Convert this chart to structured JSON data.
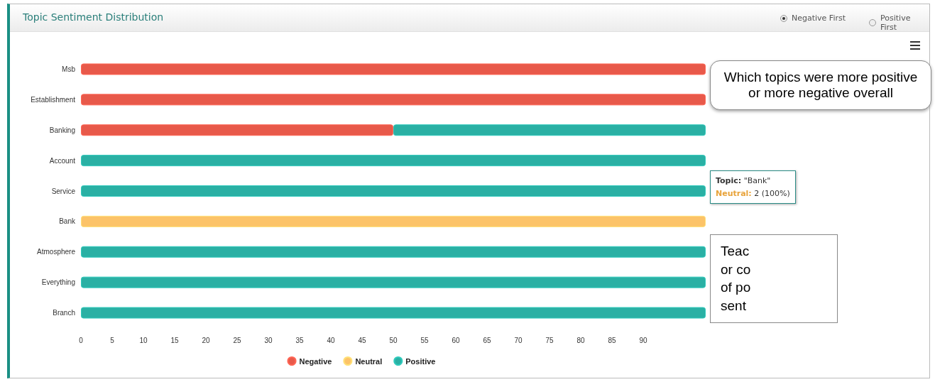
{
  "chart_data": {
    "type": "bar",
    "title": "Topic Sentiment Distribution",
    "orientation": "horizontal",
    "stacked": true,
    "grid": false,
    "legend": "bottom",
    "categories": [
      "Msb",
      "Establishment",
      "Banking",
      "Account",
      "Service",
      "Bank",
      "Atmosphere",
      "Everything",
      "Branch"
    ],
    "series": [
      {
        "name": "Negative",
        "color": "#e8594a",
        "values": [
          100,
          100,
          50,
          null,
          null,
          null,
          null,
          null,
          null
        ]
      },
      {
        "name": "Neutral",
        "color": "#fcc368",
        "values": [
          null,
          null,
          null,
          null,
          null,
          100,
          null,
          null,
          null
        ]
      },
      {
        "name": "Positive",
        "color": "#2ab0a4",
        "values": [
          null,
          null,
          50,
          100,
          100,
          null,
          100,
          100,
          100
        ]
      }
    ],
    "xlim": [
      0,
      100
    ],
    "xticks": [
      0,
      5,
      10,
      15,
      20,
      25,
      30,
      35,
      40,
      45,
      50,
      55,
      60,
      65,
      70,
      75,
      80,
      85,
      90
    ],
    "annotations": [
      "Negative First",
      "Positive First",
      "Which topics were more positive or more negative overall",
      "Topic: \"Bank\"\nNeutral: 2 (100%)",
      "Teac\nor co\nof po\nsent"
    ]
  }
}
